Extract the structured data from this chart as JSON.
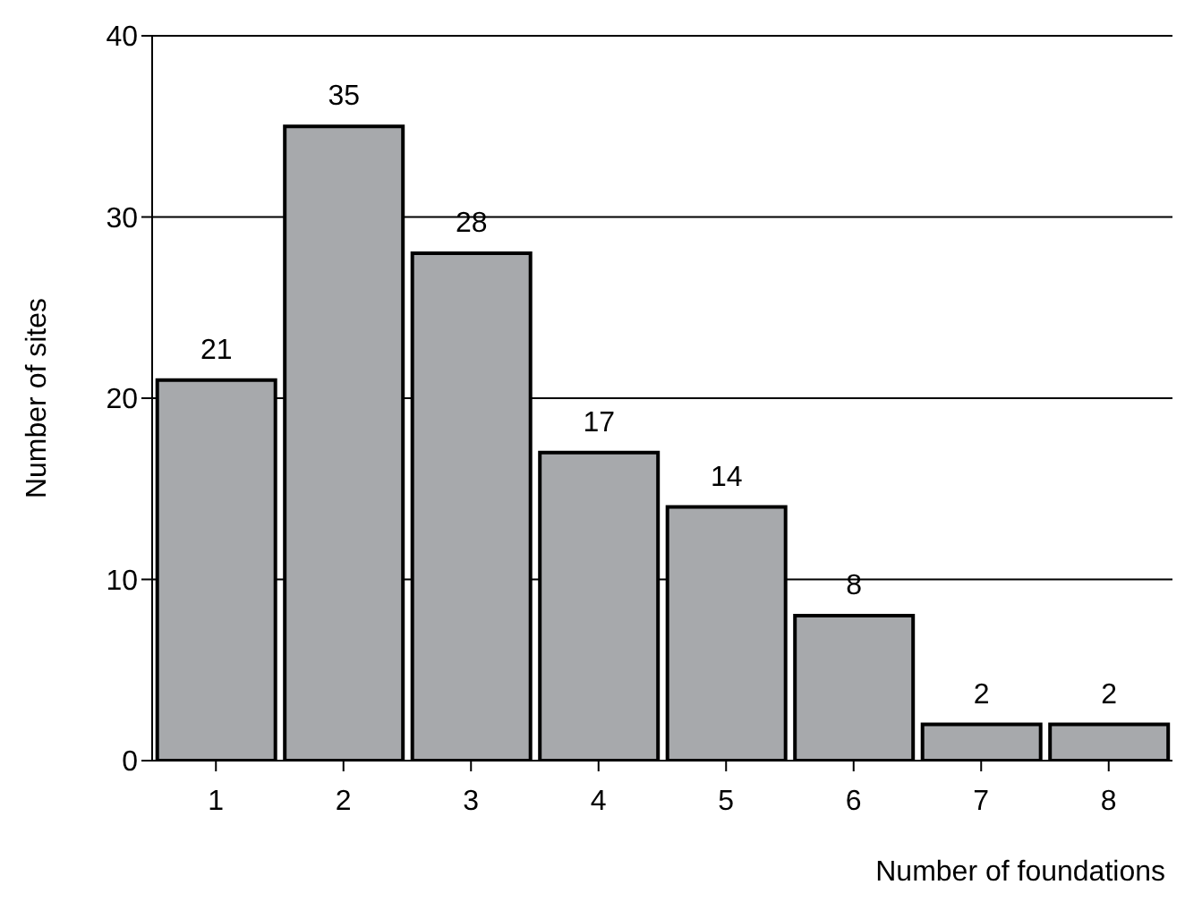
{
  "chart_data": {
    "type": "bar",
    "xlabel": "Number of foundations",
    "ylabel": "Number of sites",
    "categories": [
      "1",
      "2",
      "3",
      "4",
      "5",
      "6",
      "7",
      "8"
    ],
    "values": [
      21,
      35,
      28,
      17,
      14,
      8,
      2,
      2
    ],
    "color": "#a7a9ac",
    "ylim": [
      0,
      40
    ],
    "yticks": [
      0,
      10,
      20,
      30,
      40
    ],
    "grid": "y",
    "data_labels": true
  }
}
